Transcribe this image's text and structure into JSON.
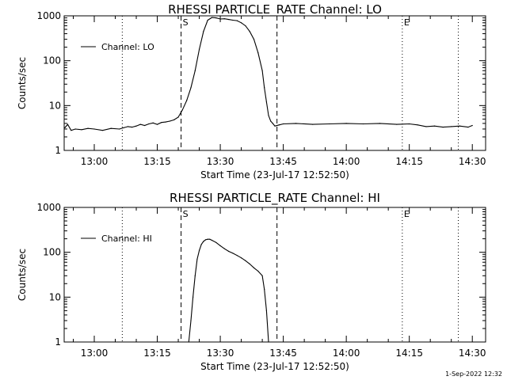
{
  "footer_stamp": "1-Sep-2022 12:32",
  "chart_data": [
    {
      "type": "line",
      "title": "RHESSI PARTICLE_RATE Channel: LO",
      "xlabel": "Start Time (23-Jul-17 12:52:50)",
      "ylabel": "Counts/sec",
      "yscale": "log",
      "xlim": [
        "12:52:50",
        "14:33:10"
      ],
      "ylim": [
        1,
        1000
      ],
      "xticks": [
        "13:00",
        "13:15",
        "13:30",
        "13:45",
        "14:00",
        "14:15",
        "14:30"
      ],
      "yticks": [
        "1",
        "10",
        "100",
        "1000"
      ],
      "legend": {
        "label": "Channel: LO",
        "placement": "top-left"
      },
      "markers": [
        {
          "label": "",
          "style": "dotted",
          "x": "13:06:40"
        },
        {
          "label": "S",
          "style": "dashed",
          "x": "13:20:40"
        },
        {
          "label": "",
          "style": "dashed",
          "x": "13:43:30"
        },
        {
          "label": "E",
          "style": "dotted",
          "x": "14:13:20"
        },
        {
          "label": "",
          "style": "dotted",
          "x": "14:26:40"
        }
      ],
      "series": [
        {
          "x": [
            "12:53:00",
            "12:53:40",
            "12:54:30",
            "12:55:30",
            "12:57:00",
            "12:58:30",
            "13:00:00",
            "13:02:00",
            "13:04:00",
            "13:06:00",
            "13:07:00",
            "13:08:00",
            "13:09:00",
            "13:10:00",
            "13:11:00",
            "13:12:00",
            "13:13:00",
            "13:14:00",
            "13:15:00",
            "13:16:00",
            "13:17:00",
            "13:18:00",
            "13:19:00",
            "13:20:00",
            "13:21:00",
            "13:22:00",
            "13:23:00",
            "13:24:00",
            "13:25:00",
            "13:26:00",
            "13:27:00",
            "13:28:00",
            "13:29:00",
            "13:30:00",
            "13:31:00",
            "13:32:00",
            "13:33:00",
            "13:34:00",
            "13:35:00",
            "13:36:00",
            "13:37:00",
            "13:38:00",
            "13:39:00",
            "13:40:00",
            "13:40:30",
            "13:41:00",
            "13:41:30",
            "13:42:00",
            "13:42:30",
            "13:43:00",
            "13:44:00",
            "13:45:00",
            "13:48:00",
            "13:52:00",
            "13:56:00",
            "14:00:00",
            "14:04:00",
            "14:08:00",
            "14:12:00",
            "14:15:00",
            "14:17:00",
            "14:19:00",
            "14:21:00",
            "14:23:00",
            "14:25:00",
            "14:27:00",
            "14:29:00",
            "14:30:00"
          ],
          "values": [
            3.2,
            3.8,
            2.8,
            3.0,
            2.9,
            3.1,
            3.0,
            2.8,
            3.1,
            3.0,
            3.2,
            3.4,
            3.3,
            3.5,
            3.8,
            3.6,
            3.9,
            4.1,
            3.8,
            4.2,
            4.3,
            4.5,
            4.8,
            5.5,
            8,
            13,
            25,
            60,
            180,
            450,
            800,
            920,
            900,
            850,
            860,
            830,
            800,
            780,
            700,
            600,
            450,
            300,
            150,
            60,
            25,
            12,
            6,
            4.5,
            4.0,
            3.5,
            3.7,
            3.9,
            4.0,
            3.8,
            3.9,
            4.0,
            3.9,
            4.0,
            3.8,
            3.9,
            3.7,
            3.4,
            3.5,
            3.3,
            3.4,
            3.5,
            3.3,
            3.6
          ]
        }
      ]
    },
    {
      "type": "line",
      "title": "RHESSI PARTICLE_RATE Channel: HI",
      "xlabel": "Start Time (23-Jul-17 12:52:50)",
      "ylabel": "Counts/sec",
      "yscale": "log",
      "xlim": [
        "12:52:50",
        "14:33:10"
      ],
      "ylim": [
        1,
        1000
      ],
      "xticks": [
        "13:00",
        "13:15",
        "13:30",
        "13:45",
        "14:00",
        "14:15",
        "14:30"
      ],
      "yticks": [
        "1",
        "10",
        "100",
        "1000"
      ],
      "legend": {
        "label": "Channel: HI",
        "placement": "top-left"
      },
      "markers": [
        {
          "label": "",
          "style": "dotted",
          "x": "13:06:40"
        },
        {
          "label": "S",
          "style": "dashed",
          "x": "13:20:40"
        },
        {
          "label": "",
          "style": "dashed",
          "x": "13:43:30"
        },
        {
          "label": "E",
          "style": "dotted",
          "x": "14:13:20"
        },
        {
          "label": "",
          "style": "dotted",
          "x": "14:26:40"
        }
      ],
      "series": [
        {
          "x": [
            "13:22:30",
            "13:23:00",
            "13:23:30",
            "13:24:00",
            "13:24:30",
            "13:25:00",
            "13:25:30",
            "13:26:00",
            "13:26:30",
            "13:27:00",
            "13:27:30",
            "13:28:00",
            "13:29:00",
            "13:30:00",
            "13:31:00",
            "13:32:00",
            "13:33:00",
            "13:34:00",
            "13:35:00",
            "13:36:00",
            "13:37:00",
            "13:38:00",
            "13:39:00",
            "13:40:00",
            "13:40:30",
            "13:41:00",
            "13:41:30"
          ],
          "values": [
            1,
            3,
            10,
            30,
            70,
            110,
            150,
            175,
            190,
            195,
            195,
            185,
            165,
            140,
            120,
            105,
            95,
            85,
            75,
            65,
            55,
            45,
            38,
            30,
            15,
            5,
            1
          ]
        }
      ]
    }
  ]
}
